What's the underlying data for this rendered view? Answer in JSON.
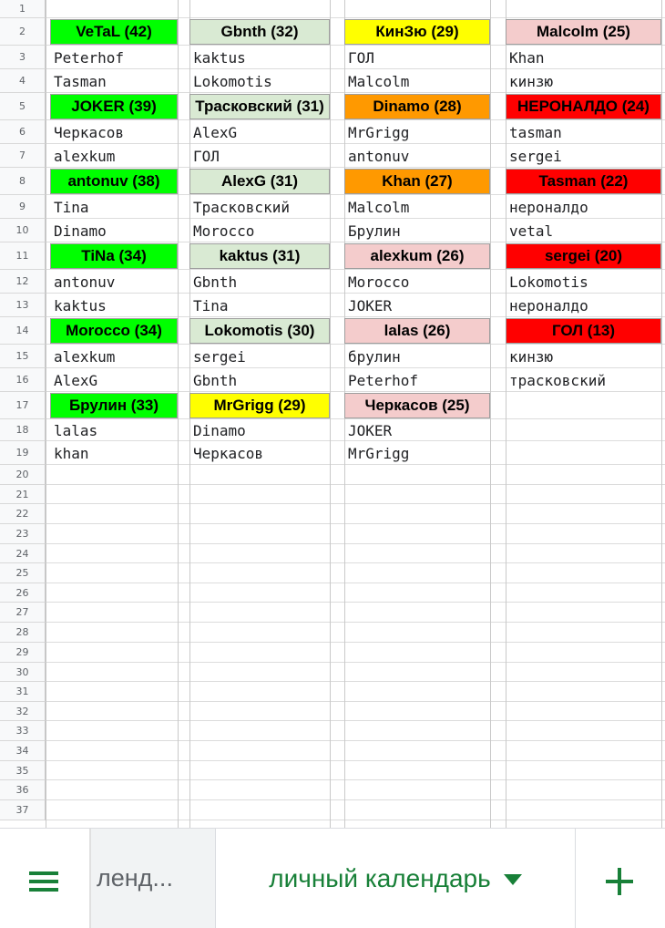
{
  "rows": [
    "1",
    "2",
    "3",
    "4",
    "5",
    "6",
    "7",
    "8",
    "9",
    "10",
    "11",
    "12",
    "13",
    "14",
    "15",
    "16",
    "17",
    "18",
    "19",
    "20",
    "21",
    "22",
    "23",
    "24",
    "25",
    "26",
    "27",
    "28",
    "29",
    "30",
    "31",
    "32",
    "33",
    "34",
    "35",
    "36",
    "37"
  ],
  "columns": [
    {
      "blocks": [
        {
          "header": "VeTaL (42)",
          "color": "#00ff00",
          "items": [
            "Peterhof",
            "Tasman"
          ]
        },
        {
          "header": "JOKER (39)",
          "color": "#00ff00",
          "items": [
            "Черкасов",
            "alexkum"
          ]
        },
        {
          "header": "antonuv (38)",
          "color": "#00ff00",
          "items": [
            "Tina",
            "Dinamo"
          ]
        },
        {
          "header": "TiNa (34)",
          "color": "#00ff00",
          "items": [
            "antonuv",
            "kaktus"
          ]
        },
        {
          "header": "Morocco (34)",
          "color": "#00ff00",
          "items": [
            "alexkum",
            "AlexG"
          ]
        },
        {
          "header": "Брулин (33)",
          "color": "#00ff00",
          "items": [
            "lalas",
            "khan"
          ]
        }
      ]
    },
    {
      "blocks": [
        {
          "header": "Gbnth (32)",
          "color": "#d9ead3",
          "items": [
            "kaktus",
            "Lokomotis"
          ]
        },
        {
          "header": "Трасковский (31)",
          "color": "#d9ead3",
          "items": [
            "AlexG",
            "ГОЛ"
          ]
        },
        {
          "header": "AlexG (31)",
          "color": "#d9ead3",
          "items": [
            "Трасковский",
            "Morocco"
          ]
        },
        {
          "header": "kaktus (31)",
          "color": "#d9ead3",
          "items": [
            "Gbnth",
            "Tina"
          ]
        },
        {
          "header": "Lokomotis (30)",
          "color": "#d9ead3",
          "items": [
            "sergei",
            "Gbnth"
          ]
        },
        {
          "header": "MrGrigg (29)",
          "color": "#ffff00",
          "items": [
            "Dinamo",
            "Черкасов"
          ]
        }
      ]
    },
    {
      "blocks": [
        {
          "header": "КинЗю (29)",
          "color": "#ffff00",
          "items": [
            "ГОЛ",
            "Malcolm"
          ]
        },
        {
          "header": "Dinamo (28)",
          "color": "#ff9900",
          "items": [
            "MrGrigg",
            "antonuv"
          ]
        },
        {
          "header": "Khan (27)",
          "color": "#ff9900",
          "items": [
            "Malcolm",
            "Брулин"
          ]
        },
        {
          "header": "alexkum (26)",
          "color": "#f4cccc",
          "items": [
            "Morocco",
            "JOKER"
          ]
        },
        {
          "header": "lalas (26)",
          "color": "#f4cccc",
          "items": [
            "брулин",
            "Peterhof"
          ]
        },
        {
          "header": "Черкасов (25)",
          "color": "#f4cccc",
          "items": [
            "JOKER",
            "MrGrigg"
          ]
        }
      ]
    },
    {
      "blocks": [
        {
          "header": "Malcolm (25)",
          "color": "#f4cccc",
          "items": [
            "Khan",
            "кинзю"
          ]
        },
        {
          "header": "НЕРОНАЛДО (24)",
          "color": "#ff0000",
          "items": [
            "tasman",
            "sergei"
          ]
        },
        {
          "header": "Tasman (22)",
          "color": "#ff0000",
          "items": [
            "нероналдо",
            "vetal"
          ]
        },
        {
          "header": "sergei (20)",
          "color": "#ff0000",
          "items": [
            "Lokomotis",
            "нероналдо"
          ]
        },
        {
          "header": "ГОЛ (13)",
          "color": "#ff0000",
          "items": [
            "кинзю",
            "трасковский"
          ]
        }
      ]
    }
  ],
  "tabs": {
    "menu_icon": "hamburger-menu-icon",
    "previous_tab_label": "ленд...",
    "active_tab_label": "личный календарь",
    "dropdown_icon": "triangle-down-icon",
    "add_icon": "plus-icon",
    "accent_color": "#188038"
  }
}
